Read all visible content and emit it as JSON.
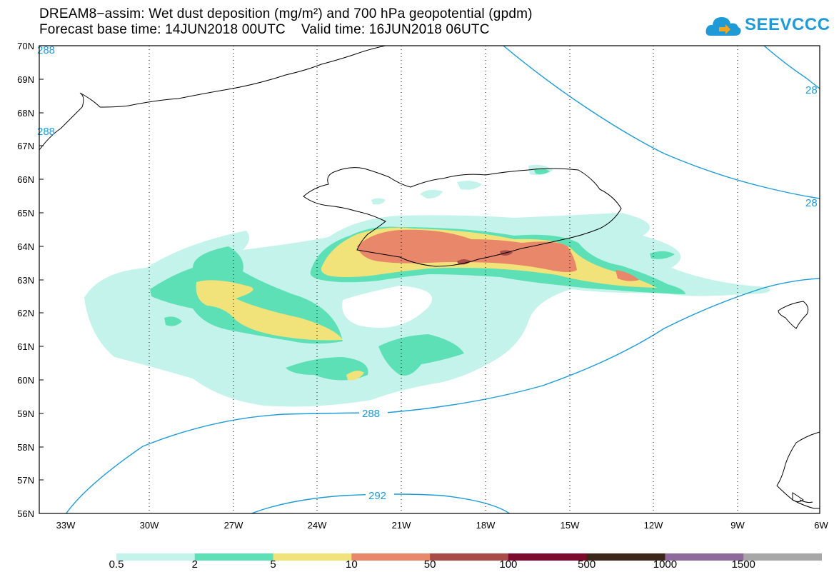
{
  "title_line1": "DREAM8−assim: Wet dust deposition (mg/m²) and 700 hPa geopotential (gpdm)",
  "title_line2": "Forecast base time: 14JUN2018 00UTC    Valid time: 16JUN2018 06UTC",
  "logo": {
    "text": "SEEVCCC",
    "icon": "cloud-icon",
    "color": "#1e9bd7"
  },
  "lat_labels": [
    "70N",
    "69N",
    "68N",
    "67N",
    "66N",
    "65N",
    "64N",
    "63N",
    "62N",
    "61N",
    "60N",
    "59N",
    "58N",
    "57N",
    "56N"
  ],
  "lon_labels": [
    "33W",
    "30W",
    "27W",
    "24W",
    "21W",
    "18W",
    "15W",
    "12W",
    "9W",
    "6W"
  ],
  "contour_labels": [
    "288",
    "292",
    "288",
    "288",
    "28",
    "28"
  ],
  "legend": {
    "colors": [
      "#c3f3ea",
      "#5de0b5",
      "#f2e27a",
      "#e9876a",
      "#a94b47",
      "#7d0a2c",
      "#3a2719",
      "#8e6a9a",
      "#a7a7a7"
    ],
    "labels": [
      "0.5",
      "2",
      "5",
      "10",
      "50",
      "100",
      "500",
      "1000",
      "1500"
    ]
  },
  "colors": {
    "contour": "#1e9bd7",
    "coast": "#000000"
  }
}
